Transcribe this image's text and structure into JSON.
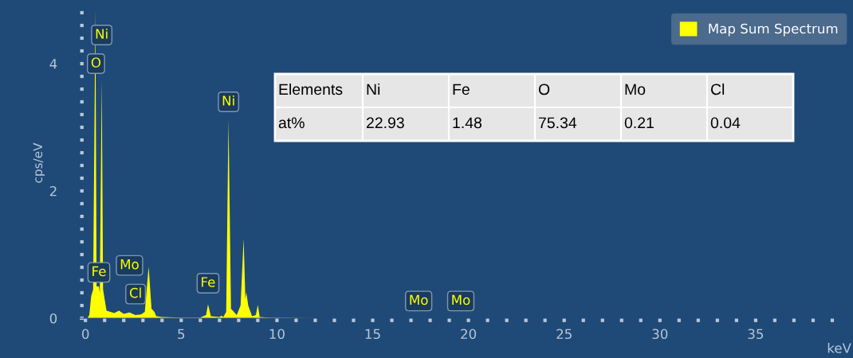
{
  "chart_data": {
    "type": "area",
    "ylabel": "cps/eV",
    "xlabel": "keV",
    "x": [
      0,
      0.1,
      0.2,
      0.3,
      0.4,
      0.52,
      0.58,
      0.7,
      0.75,
      0.85,
      0.92,
      1.0,
      1.1,
      1.3,
      1.5,
      1.75,
      2.0,
      2.3,
      2.6,
      2.9,
      3.1,
      3.3,
      3.45,
      3.6,
      3.7,
      4.0,
      5.0,
      6.0,
      6.3,
      6.4,
      6.55,
      7.0,
      7.1,
      7.2,
      7.35,
      7.47,
      7.6,
      7.9,
      8.1,
      8.26,
      8.35,
      8.4,
      8.5,
      8.7,
      8.9,
      9.0,
      9.1,
      9.5,
      12,
      20,
      40
    ],
    "series": [
      {
        "name": "Map Sum Spectrum",
        "color": "#ffff00",
        "values": [
          0,
          0.0,
          0.05,
          0.35,
          0.45,
          4.85,
          0.5,
          0.5,
          0.4,
          3.75,
          0.45,
          0.3,
          0.12,
          0.1,
          0.08,
          0.12,
          0.07,
          0.09,
          0.05,
          0.06,
          0.1,
          0.81,
          0.15,
          0.1,
          0.03,
          0.02,
          0.01,
          0.01,
          0.05,
          0.22,
          0.03,
          0.02,
          0.04,
          0.02,
          0.1,
          3.12,
          0.15,
          0.05,
          0.2,
          1.25,
          0.3,
          0.41,
          0.2,
          0.03,
          0.05,
          0.21,
          0.02,
          0.01,
          0.0,
          0.0,
          0
        ]
      }
    ],
    "xlim": [
      -0.3,
      40
    ],
    "xticks": [
      0,
      {
        "value": 1,
        "label": null
      },
      {
        "value": 2,
        "label": null
      },
      {
        "value": 3,
        "label": null
      },
      {
        "value": 4,
        "label": null
      },
      5,
      {
        "value": 6,
        "label": null
      },
      {
        "value": 7,
        "label": null
      },
      {
        "value": 8,
        "label": null
      },
      {
        "value": 9,
        "label": null
      },
      10,
      {
        "value": 11,
        "label": null
      },
      {
        "value": 12,
        "label": null
      },
      {
        "value": 13,
        "label": null
      },
      {
        "value": 14,
        "label": null
      },
      15,
      {
        "value": 16,
        "label": null
      },
      {
        "value": 17,
        "label": null
      },
      {
        "value": 18,
        "label": null
      },
      {
        "value": 19,
        "label": null
      },
      20,
      {
        "value": 21,
        "label": null
      },
      {
        "value": 22,
        "label": null
      },
      {
        "value": 23,
        "label": null
      },
      {
        "value": 24,
        "label": null
      },
      25,
      {
        "value": 26,
        "label": null
      },
      {
        "value": 27,
        "label": null
      },
      {
        "value": 28,
        "label": null
      },
      {
        "value": 29,
        "label": null
      },
      30,
      {
        "value": 31,
        "label": null
      },
      {
        "value": 32,
        "label": null
      },
      {
        "value": 33,
        "label": null
      },
      {
        "value": 34,
        "label": null
      },
      35,
      {
        "value": 36,
        "label": null
      },
      {
        "value": 37,
        "label": null
      },
      {
        "value": 38,
        "label": null
      },
      {
        "value": 39,
        "label": null
      }
    ],
    "ylim": [
      0,
      4.875
    ],
    "yticks": [
      0,
      {
        "value": 0.2,
        "label": null
      },
      {
        "value": 0.4,
        "label": null
      },
      {
        "value": 0.6,
        "label": null
      },
      {
        "value": 0.8,
        "label": null
      },
      {
        "value": 1.0,
        "label": null
      },
      {
        "value": 1.2,
        "label": null
      },
      {
        "value": 1.4,
        "label": null
      },
      {
        "value": 1.6,
        "label": null
      },
      {
        "value": 1.8,
        "label": null
      },
      2,
      {
        "value": 2.2,
        "label": null
      },
      {
        "value": 2.4,
        "label": null
      },
      {
        "value": 2.6,
        "label": null
      },
      {
        "value": 2.8,
        "label": null
      },
      {
        "value": 3.0,
        "label": null
      },
      {
        "value": 3.2,
        "label": null
      },
      {
        "value": 3.4,
        "label": null
      },
      {
        "value": 3.6,
        "label": null
      },
      {
        "value": 3.8,
        "label": null
      },
      4,
      {
        "value": 4.2,
        "label": null
      },
      {
        "value": 4.4,
        "label": null
      },
      {
        "value": 4.6,
        "label": null
      },
      {
        "value": 4.8,
        "label": null
      }
    ],
    "grid": false,
    "legend": "top right",
    "annotations": [
      {
        "text": "Ni",
        "x": 0.85,
        "y": 4.45
      },
      {
        "text": "O",
        "x": 0.55,
        "y": 4.0
      },
      {
        "text": "Fe",
        "x": 0.7,
        "y": 0.72
      },
      {
        "text": "Mo",
        "x": 2.3,
        "y": 0.83
      },
      {
        "text": "Cl",
        "x": 2.62,
        "y": 0.38
      },
      {
        "text": "Fe",
        "x": 6.4,
        "y": 0.55
      },
      {
        "text": "Ni",
        "x": 7.47,
        "y": 3.4
      },
      {
        "text": "Mo",
        "x": 17.4,
        "y": 0.27
      },
      {
        "text": "Mo",
        "x": 19.6,
        "y": 0.27
      },
      "Elements",
      "Ni",
      "Fe",
      "O",
      "Mo",
      "Cl",
      "at%",
      "22.93",
      "1.48",
      "75.34",
      "0.21",
      "0.04"
    ]
  }
}
